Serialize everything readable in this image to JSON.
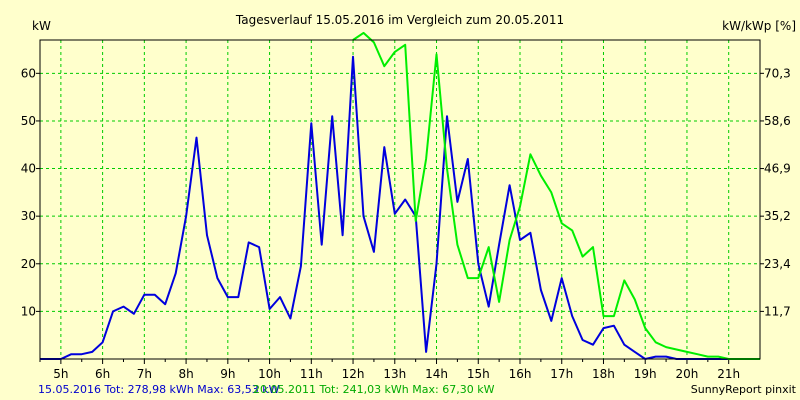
{
  "chart_data": {
    "type": "line",
    "title": "Tagesverlauf 15.05.2016 im Vergleich zum 20.05.2011",
    "ylabel_left": "kW",
    "ylabel_right": "kW/kWp [%]",
    "x_ticks": [
      "5h",
      "6h",
      "7h",
      "8h",
      "9h",
      "10h",
      "11h",
      "12h",
      "13h",
      "14h",
      "15h",
      "16h",
      "17h",
      "18h",
      "19h",
      "20h",
      "21h"
    ],
    "x_range": [
      4.5,
      21.75
    ],
    "y_ticks_left": [
      "10",
      "20",
      "30",
      "40",
      "50",
      "60"
    ],
    "y_ticks_right": [
      "11,7",
      "23,4",
      "35,2",
      "46,9",
      "58,6",
      "70,3"
    ],
    "y_range_left": [
      0,
      67
    ],
    "grid": true,
    "series": [
      {
        "name": "15.05.2016",
        "color": "#0000dd",
        "x": [
          4.5,
          4.75,
          5.0,
          5.25,
          5.5,
          5.75,
          6.0,
          6.25,
          6.5,
          6.75,
          7.0,
          7.25,
          7.5,
          7.75,
          8.0,
          8.25,
          8.5,
          8.75,
          9.0,
          9.25,
          9.5,
          9.75,
          10.0,
          10.25,
          10.5,
          10.75,
          11.0,
          11.25,
          11.5,
          11.75,
          12.0,
          12.25,
          12.5,
          12.75,
          13.0,
          13.25,
          13.5,
          13.75,
          14.0,
          14.25,
          14.5,
          14.75,
          15.0,
          15.25,
          15.5,
          15.75,
          16.0,
          16.25,
          16.5,
          16.75,
          17.0,
          17.25,
          17.5,
          17.75,
          18.0,
          18.25,
          18.5,
          18.75,
          19.0,
          19.25,
          19.5,
          19.75,
          20.0,
          20.25,
          20.5,
          20.75,
          21.0,
          21.25,
          21.5,
          21.75
        ],
        "values": [
          0,
          0,
          0,
          1,
          1,
          1.5,
          3.5,
          10,
          11,
          9.5,
          13.5,
          13.5,
          11.5,
          18,
          30,
          46.5,
          26,
          17,
          13,
          13,
          24.5,
          23.5,
          10.5,
          13,
          8.5,
          19.5,
          49.5,
          24,
          51,
          26,
          63.5,
          30,
          22.5,
          44.5,
          30.5,
          33.5,
          30,
          1.5,
          20,
          51,
          33,
          42,
          20,
          11,
          24,
          36.5,
          25,
          26.5,
          14.5,
          8,
          17,
          9,
          4,
          3,
          6.5,
          7,
          3,
          1.5,
          0,
          0.5,
          0.5,
          0,
          0,
          0,
          0,
          0,
          0,
          0,
          0,
          0
        ]
      },
      {
        "name": "20.05.2011",
        "color": "#00ee00",
        "x": [
          12.0,
          12.25,
          12.5,
          12.75,
          13.0,
          13.25,
          13.5,
          13.75,
          14.0,
          14.25,
          14.5,
          14.75,
          15.0,
          15.25,
          15.5,
          15.75,
          16.0,
          16.25,
          16.5,
          16.75,
          17.0,
          17.25,
          17.5,
          17.75,
          18.0,
          18.25,
          18.5,
          18.75,
          19.0,
          19.25,
          19.5,
          19.75,
          20.0,
          20.25,
          20.5,
          20.75,
          21.0,
          21.25,
          21.5,
          21.75
        ],
        "values": [
          67,
          68.5,
          66.5,
          61.5,
          64.5,
          66,
          29,
          42,
          64,
          40,
          24,
          17,
          17,
          23.5,
          12,
          25,
          32,
          43,
          38.5,
          35,
          28.5,
          27,
          21.5,
          23.5,
          9,
          9,
          16.5,
          12.5,
          6.5,
          3.5,
          2.5,
          2,
          1.5,
          1,
          0.5,
          0.5,
          0,
          0,
          0,
          0
        ]
      }
    ],
    "footer": {
      "legend1": "15.05.2016 Tot: 278,98 kWh Max: 63,53 kW",
      "legend2": "20.05.2011 Tot: 241,03 kWh Max: 67,30 kW",
      "credit": "SunnyReport pinxit"
    }
  }
}
